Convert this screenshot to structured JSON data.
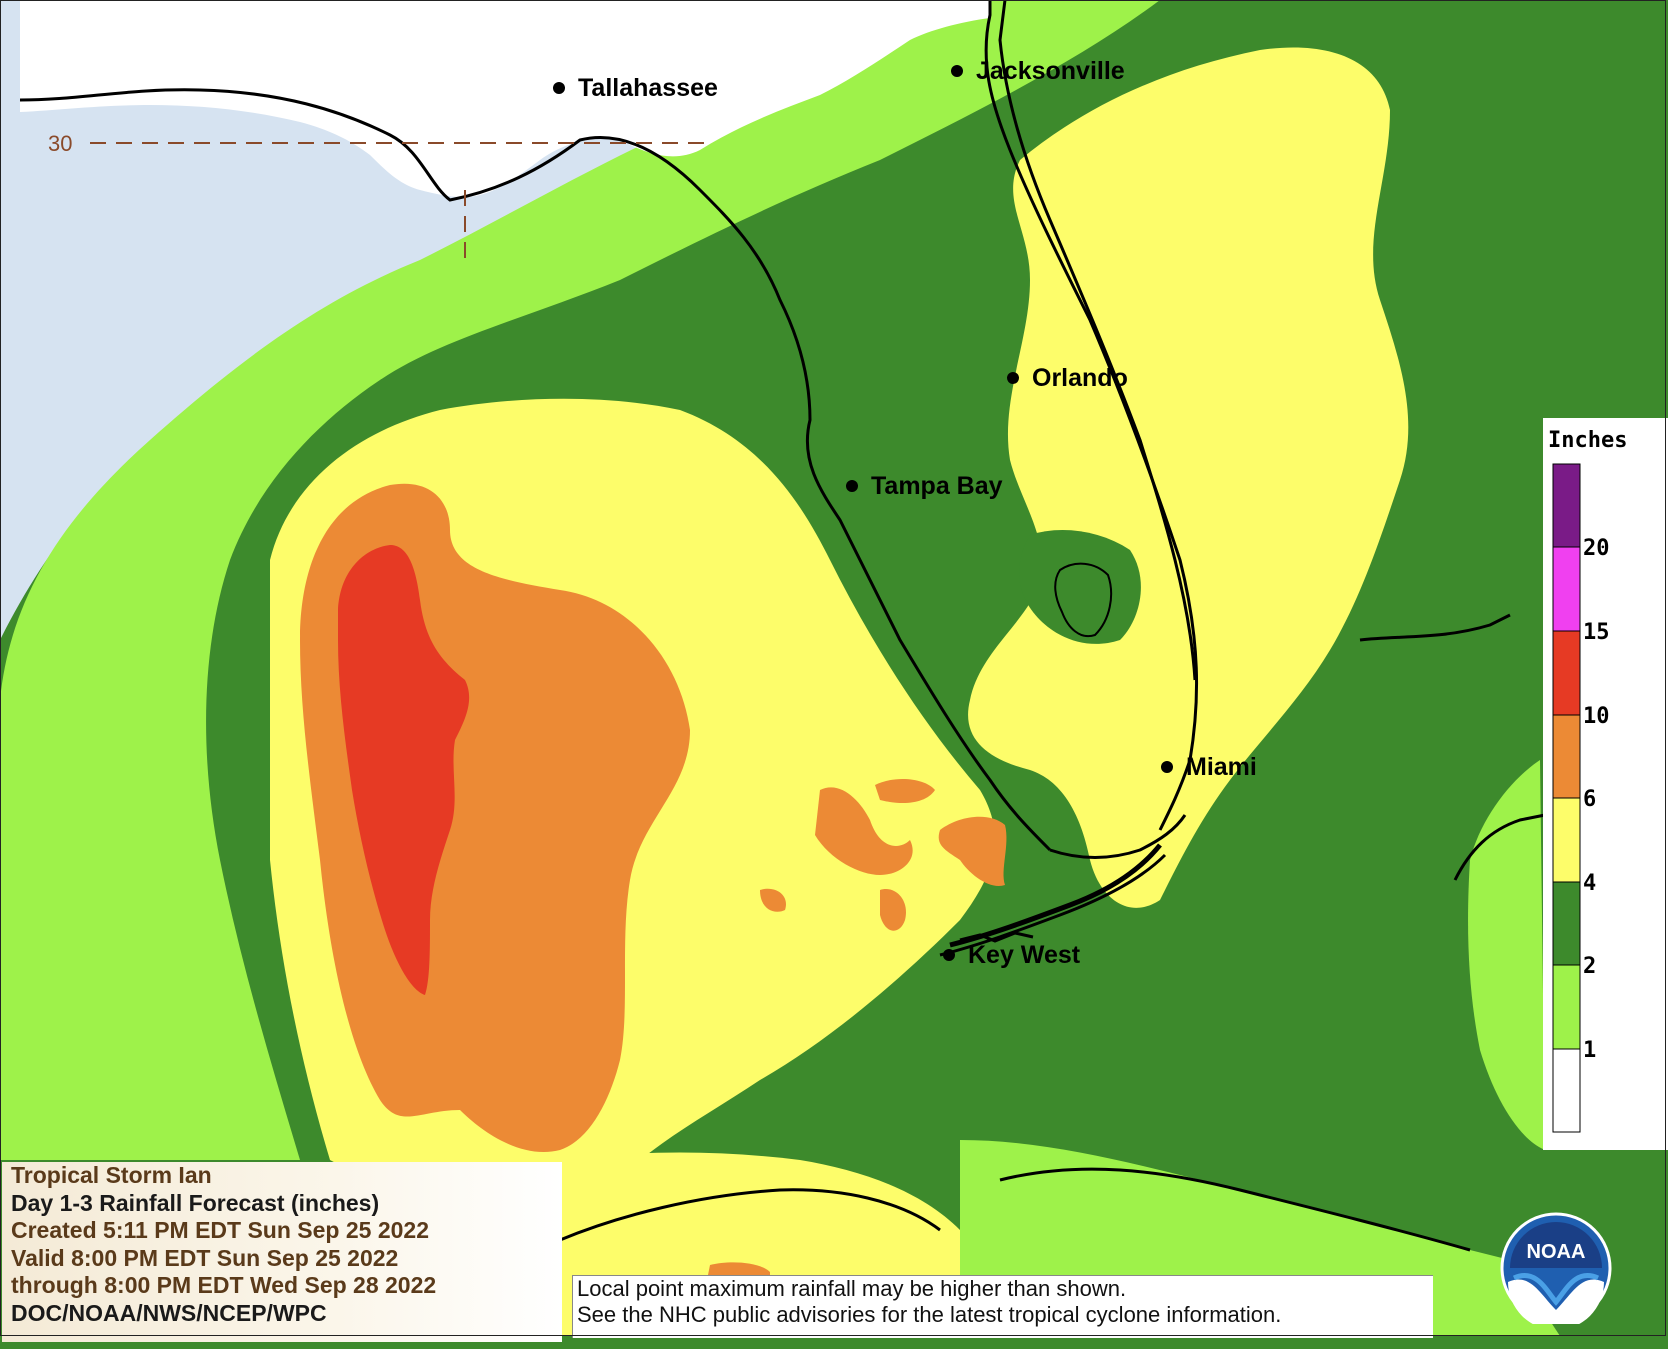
{
  "map": {
    "cities": [
      {
        "name": "Tallahassee"
      },
      {
        "name": "Jacksonville"
      },
      {
        "name": "Orlando"
      },
      {
        "name": "Tampa Bay"
      },
      {
        "name": "Miami"
      },
      {
        "name": "Key West"
      }
    ],
    "latitude_label": "30",
    "zone_colors": {
      "ocean": "#d6e3f1",
      "land": "#ffffff",
      "1-2": "#9ef24a",
      "2-4": "#3d8a2c",
      "4-6": "#fdfd6a",
      "6-10": "#ec8a35",
      "10-15": "#e63a24"
    }
  },
  "legend": {
    "title": "Inches",
    "ticks": [
      "20",
      "15",
      "10",
      "6",
      "4",
      "2",
      "1"
    ],
    "colors": [
      "#7a1b87",
      "#f040f0",
      "#e63a24",
      "#ec8a35",
      "#fdfd6a",
      "#3d8a2c",
      "#9ef24a",
      "#ffffff"
    ]
  },
  "info": {
    "storm": "Tropical Storm Ian",
    "product": "Day 1-3 Rainfall Forecast (inches)",
    "created": "Created 5:11 PM EDT Sun Sep 25 2022",
    "valid": "Valid 8:00 PM EDT Sun Sep 25 2022",
    "through": "through 8:00 PM EDT Wed Sep 28 2022",
    "agency": "DOC/NOAA/NWS/NCEP/WPC"
  },
  "disclaimer": {
    "line1": "Local point maximum rainfall may be higher than shown.",
    "line2": "See the NHC public advisories for the latest tropical cyclone information."
  },
  "logo": {
    "text": "NOAA",
    "icon": "noaa-logo-icon"
  }
}
